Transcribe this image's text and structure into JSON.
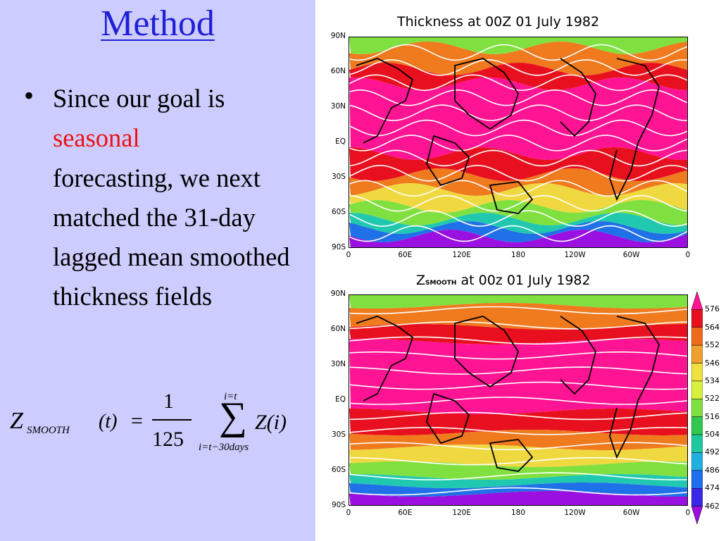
{
  "slide": {
    "title": "Method",
    "bullet_marker": "•",
    "bullet_part1": "Since our goal is",
    "bullet_highlight": "seasonal",
    "bullet_part2": "forecasting, we next matched the 31-day lagged mean smoothed thickness fields"
  },
  "formula": {
    "lhs_symbol": "Z",
    "lhs_subscript": "SMOOTH",
    "lhs_arg": "(t)",
    "equals": "=",
    "numerator": "1",
    "denominator": "125",
    "sum_symbol": "∑",
    "sum_upper": "i=t",
    "sum_lower": "i=t−30days",
    "rhs": "Z(i)"
  },
  "map_top": {
    "title": "Thickness at 00Z 01 July 1982"
  },
  "map_bottom": {
    "title_prefix": "Z",
    "title_subscript": "SMOOTH",
    "title_suffix": "at 00z 01 July 1982"
  },
  "lat_ticks": [
    "90N",
    "60N",
    "30N",
    "EQ",
    "30S",
    "60S",
    "90S"
  ],
  "lon_ticks": [
    "0",
    "60E",
    "120E",
    "180",
    "120W",
    "60W",
    "0"
  ],
  "colorbar": {
    "labels": [
      "576",
      "564",
      "552",
      "546",
      "534",
      "522",
      "516",
      "504",
      "492",
      "486",
      "474",
      "462"
    ],
    "colors": [
      "#ff1493",
      "#e8101e",
      "#f06a1e",
      "#f0a030",
      "#f0e040",
      "#d8f040",
      "#80e040",
      "#30c850",
      "#20c8a0",
      "#20b0e0",
      "#1e6ef0",
      "#3a28e8",
      "#9a10e0"
    ]
  },
  "map_colors": {
    "band_top": "#ff1493",
    "band_red": "#e8101e",
    "band_orange": "#f07a1e",
    "band_yellow": "#f0d840",
    "band_green": "#80e040",
    "band_cyan": "#20c8b0",
    "band_blue": "#2070e8",
    "band_purple": "#9a10e0",
    "contour": "#ffffff",
    "coast": "#000000"
  }
}
